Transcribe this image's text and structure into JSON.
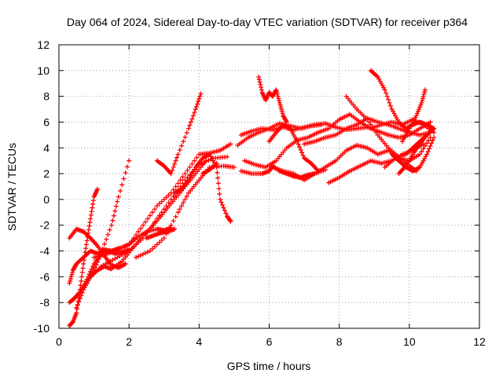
{
  "chart_data": {
    "type": "scatter",
    "title": "Day 064 of 2024, Sidereal Day-to-day VTEC variation (SDTVAR) for receiver p364",
    "xlabel": "GPS time / hours",
    "ylabel": "SDTVAR / TECUs",
    "xlim": [
      0,
      12
    ],
    "ylim": [
      -10,
      12
    ],
    "xticks": [
      "0",
      "2",
      "4",
      "6",
      "8",
      "10",
      "12"
    ],
    "yticks": [
      "-10",
      "-8",
      "-6",
      "-4",
      "-2",
      "0",
      "2",
      "4",
      "6",
      "8",
      "10",
      "12"
    ],
    "grid": true,
    "marker": "+",
    "color": "#ff0000",
    "series": [
      {
        "x": [
          0.3,
          0.4,
          0.5,
          0.6,
          0.7,
          0.8,
          0.9,
          1.0,
          1.1
        ],
        "y": [
          -9.8,
          -9.5,
          -8.8,
          -7.0,
          -5.0,
          -3.2,
          -1.5,
          0.2,
          0.8
        ]
      },
      {
        "x": [
          0.3,
          0.5,
          0.8,
          1.0,
          1.2,
          1.5,
          1.7,
          2.0
        ],
        "y": [
          -8.0,
          -7.5,
          -6.5,
          -5.5,
          -4.2,
          -2.0,
          0.2,
          3.0
        ]
      },
      {
        "x": [
          0.4,
          0.6,
          0.8,
          1.0,
          1.2,
          1.4,
          1.6,
          1.8,
          2.0
        ],
        "y": [
          -7.8,
          -7.2,
          -6.2,
          -5.0,
          -4.2,
          -4.0,
          -4.2,
          -4.1,
          -3.9
        ]
      },
      {
        "x": [
          0.3,
          0.4,
          0.5,
          0.7,
          0.9,
          1.1,
          1.3,
          1.5,
          1.7,
          2.0,
          2.2,
          2.5,
          2.8,
          3.0,
          3.2
        ],
        "y": [
          -6.5,
          -5.5,
          -5.0,
          -4.5,
          -4.0,
          -4.2,
          -3.9,
          -4.0,
          -3.8,
          -3.5,
          -3.0,
          -2.5,
          -2.3,
          -2.4,
          -2.2
        ]
      },
      {
        "x": [
          0.3,
          0.5,
          0.7,
          0.9,
          1.1,
          1.3,
          1.5,
          1.7,
          1.9
        ],
        "y": [
          -3.0,
          -2.3,
          -2.5,
          -3.0,
          -3.6,
          -4.4,
          -5.1,
          -5.3,
          -5.0
        ]
      },
      {
        "x": [
          0.5,
          0.7,
          0.9,
          1.1,
          1.3,
          1.5,
          1.8,
          2.1,
          2.4,
          2.7,
          3.0,
          3.3,
          3.6,
          3.9,
          4.2
        ],
        "y": [
          -8.4,
          -7.0,
          -6.0,
          -5.5,
          -5.2,
          -5.4,
          -4.8,
          -3.8,
          -2.8,
          -2.0,
          -1.0,
          0.0,
          1.0,
          2.0,
          3.0
        ]
      },
      {
        "x": [
          1.0,
          1.3,
          1.6,
          2.0,
          2.4,
          2.8,
          3.2,
          3.6,
          4.0,
          4.3,
          4.6,
          4.9
        ],
        "y": [
          -4.5,
          -4.3,
          -4.0,
          -3.5,
          -2.0,
          -0.5,
          0.5,
          2.0,
          3.5,
          3.6,
          3.8,
          4.3
        ]
      },
      {
        "x": [
          1.2,
          1.6,
          2.0,
          2.4,
          2.8,
          3.2,
          3.6,
          4.0,
          4.4,
          4.8
        ],
        "y": [
          -5.2,
          -4.6,
          -4.0,
          -3.0,
          -1.5,
          0.0,
          1.5,
          2.7,
          3.2,
          3.3
        ]
      },
      {
        "x": [
          2.2,
          2.6,
          3.0,
          3.4,
          3.7,
          4.0,
          4.3,
          4.7,
          5.0
        ],
        "y": [
          -4.5,
          -4.0,
          -3.0,
          -1.0,
          0.5,
          1.5,
          2.5,
          2.6,
          2.5
        ]
      },
      {
        "x": [
          2.5,
          2.7,
          2.9,
          3.1,
          3.3
        ],
        "y": [
          -3.0,
          -2.8,
          -2.6,
          -2.5,
          -2.3
        ]
      },
      {
        "x": [
          2.8,
          3.0,
          3.2,
          3.4,
          3.7,
          3.9,
          4.05
        ],
        "y": [
          3.0,
          2.6,
          2.0,
          3.5,
          5.5,
          7.0,
          8.2
        ]
      },
      {
        "x": [
          3.3,
          3.5,
          3.7,
          3.9,
          4.1,
          4.3,
          4.5,
          4.6,
          4.8,
          4.9
        ],
        "y": [
          0.5,
          0.8,
          1.5,
          2.5,
          3.2,
          3.5,
          2.5,
          0.0,
          -1.3,
          -1.7
        ]
      },
      {
        "x": [
          4.1,
          4.3,
          4.5
        ],
        "y": [
          2.0,
          2.3,
          2.8
        ]
      },
      {
        "x": [
          5.2,
          5.5,
          5.8,
          6.0,
          6.1,
          6.3,
          6.5,
          6.7,
          6.9,
          7.1,
          7.3,
          7.6
        ],
        "y": [
          2.2,
          2.0,
          2.0,
          2.2,
          2.6,
          2.2,
          2.0,
          1.8,
          1.7,
          1.9,
          2.0,
          2.3
        ]
      },
      {
        "x": [
          5.1,
          5.4,
          5.7,
          6.0,
          6.3,
          6.6,
          6.9,
          7.2,
          7.5
        ],
        "y": [
          4.2,
          4.8,
          5.2,
          5.5,
          5.9,
          5.7,
          5.5,
          5.7,
          5.8
        ]
      },
      {
        "x": [
          5.2,
          5.5,
          5.8,
          6.1,
          6.4,
          6.7,
          7.0,
          7.3,
          7.6,
          7.9,
          8.2,
          8.5,
          8.8,
          9.1,
          9.4,
          9.7,
          10.0,
          10.3,
          10.6
        ],
        "y": [
          5.0,
          5.3,
          5.5,
          5.4,
          5.6,
          5.4,
          5.6,
          5.8,
          5.9,
          5.6,
          5.4,
          5.5,
          5.6,
          5.3,
          5.0,
          4.8,
          5.0,
          5.5,
          6.0
        ]
      },
      {
        "x": [
          5.3,
          5.6,
          5.9,
          6.2,
          6.5,
          6.8,
          7.1,
          7.4,
          7.7,
          8.0,
          8.3,
          8.6,
          8.9,
          9.2,
          9.5,
          9.8,
          10.1,
          10.4,
          10.7
        ],
        "y": [
          3.0,
          2.7,
          2.5,
          3.0,
          4.0,
          4.6,
          4.8,
          5.2,
          5.5,
          6.2,
          6.6,
          6.0,
          5.5,
          5.8,
          6.0,
          5.8,
          6.2,
          5.8,
          5.2
        ]
      },
      {
        "x": [
          5.7,
          5.8,
          5.9,
          6.0,
          6.1,
          6.2,
          6.3,
          6.4,
          6.5
        ],
        "y": [
          9.5,
          8.3,
          7.7,
          8.3,
          8.0,
          8.5,
          7.5,
          6.5,
          6.0
        ]
      },
      {
        "x": [
          6.0,
          6.2,
          6.4,
          6.6,
          6.8,
          7.0,
          7.2,
          7.4
        ],
        "y": [
          4.5,
          5.2,
          5.8,
          5.5,
          4.5,
          3.2,
          2.8,
          2.2
        ]
      },
      {
        "x": [
          6.1,
          6.4,
          6.7,
          7.0,
          7.3,
          7.6,
          7.9,
          8.2,
          8.5,
          8.8,
          9.1,
          9.4,
          9.7,
          10.0,
          10.3,
          10.6
        ],
        "y": [
          2.5,
          2.2,
          2.0,
          1.5,
          2.0,
          2.5,
          3.0,
          3.8,
          4.2,
          4.0,
          3.5,
          3.8,
          3.2,
          3.0,
          3.5,
          4.8
        ]
      },
      {
        "x": [
          7.0,
          7.3,
          7.6,
          7.9,
          8.2,
          8.5,
          8.8,
          9.1,
          9.4,
          9.7,
          10.0,
          10.3,
          10.6
        ],
        "y": [
          4.3,
          4.5,
          4.8,
          5.0,
          5.5,
          5.8,
          6.3,
          6.0,
          5.8,
          5.5,
          5.2,
          5.0,
          5.2
        ]
      },
      {
        "x": [
          7.7,
          8.0,
          8.3,
          8.6,
          8.9,
          9.2,
          9.5,
          9.8,
          10.1,
          10.4
        ],
        "y": [
          1.3,
          1.7,
          2.2,
          2.6,
          3.0,
          2.8,
          3.0,
          3.5,
          3.8,
          4.3
        ]
      },
      {
        "x": [
          8.2,
          8.5,
          8.8,
          9.1,
          9.4,
          9.7,
          10.0,
          10.2
        ],
        "y": [
          8.0,
          7.0,
          6.2,
          5.0,
          4.0,
          3.3,
          2.6,
          2.2
        ]
      },
      {
        "x": [
          8.9,
          9.1,
          9.3,
          9.5,
          9.7,
          9.9,
          10.1,
          10.3,
          10.5,
          10.7
        ],
        "y": [
          10.0,
          9.5,
          8.5,
          7.0,
          6.0,
          5.5,
          5.8,
          6.0,
          5.8,
          5.5
        ]
      },
      {
        "x": [
          9.3,
          9.6,
          9.9,
          10.1,
          10.3,
          10.5,
          10.7
        ],
        "y": [
          2.5,
          3.2,
          3.5,
          4.0,
          4.5,
          5.0,
          5.5
        ]
      },
      {
        "x": [
          9.5,
          9.7,
          9.9,
          10.1,
          10.3,
          10.5,
          10.7
        ],
        "y": [
          3.5,
          3.0,
          2.5,
          2.2,
          2.5,
          3.5,
          4.8
        ]
      },
      {
        "x": [
          9.8,
          10.0,
          10.2,
          10.35,
          10.45
        ],
        "y": [
          4.5,
          5.5,
          6.5,
          7.5,
          8.5
        ]
      },
      {
        "x": [
          9.7,
          9.9,
          10.1,
          10.3,
          10.5,
          10.7
        ],
        "y": [
          2.0,
          2.6,
          3.5,
          4.3,
          5.0,
          5.5
        ]
      }
    ]
  }
}
